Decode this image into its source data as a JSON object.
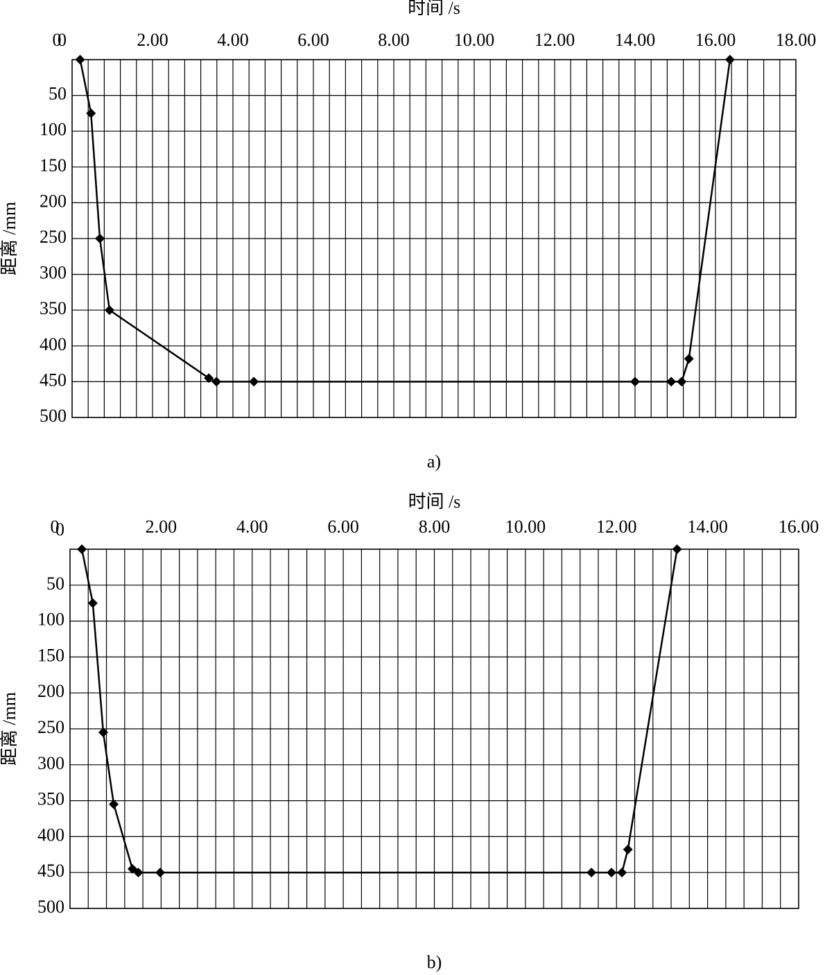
{
  "chart_data": [
    {
      "type": "line",
      "x_label": "时间 /s",
      "y_label": "距离 /mm",
      "caption": "a)",
      "xlim": [
        0,
        18
      ],
      "xticks": [
        0,
        {
          "value": 2,
          "label": "2.00"
        },
        {
          "value": 4,
          "label": "4.00"
        },
        {
          "value": 6,
          "label": "6.00"
        },
        {
          "value": 8,
          "label": "8.00"
        },
        {
          "value": 10,
          "label": "10.00"
        },
        {
          "value": 12,
          "label": "12.00"
        },
        {
          "value": 14,
          "label": "14.00"
        },
        {
          "value": 16,
          "label": "16.00"
        },
        {
          "value": 18,
          "label": "18.00"
        }
      ],
      "ylim": [
        0,
        500
      ],
      "yticks": [
        0,
        50,
        100,
        150,
        200,
        250,
        300,
        350,
        400,
        450,
        500
      ],
      "y_inverted": true,
      "x_axis_top": true,
      "grid": true,
      "series": [
        {
          "color": "#000000",
          "x": [
            0.2,
            0.47,
            0.69,
            0.93,
            3.4,
            3.59,
            4.52,
            14.0,
            14.9,
            15.16,
            15.34,
            16.36
          ],
          "values": [
            0,
            75,
            250,
            350,
            445,
            450,
            450,
            450,
            450,
            450,
            418,
            0
          ]
        }
      ]
    },
    {
      "type": "line",
      "x_label": "时间 /s",
      "y_label": "距离 /mm",
      "caption": "b)",
      "xlim": [
        0,
        16
      ],
      "xticks": [
        0,
        {
          "value": 2,
          "label": "2.00"
        },
        {
          "value": 4,
          "label": "4.00"
        },
        {
          "value": 6,
          "label": "6.00"
        },
        {
          "value": 8,
          "label": "8.00"
        },
        {
          "value": 10,
          "label": "10.00"
        },
        {
          "value": 12,
          "label": "12.00"
        },
        {
          "value": 14,
          "label": "14.00"
        },
        {
          "value": 16,
          "label": "16.00"
        }
      ],
      "ylim": [
        0,
        500
      ],
      "yticks": [
        0,
        50,
        100,
        150,
        200,
        250,
        300,
        350,
        400,
        450,
        500
      ],
      "y_inverted": true,
      "x_axis_top": true,
      "grid": true,
      "series": [
        {
          "color": "#000000",
          "x": [
            0.26,
            0.5,
            0.73,
            0.96,
            1.37,
            1.5,
            1.98,
            11.45,
            11.89,
            12.12,
            12.25,
            13.33
          ],
          "values": [
            0,
            75,
            255,
            355,
            445,
            450,
            450,
            450,
            450,
            450,
            418,
            0
          ]
        }
      ]
    }
  ]
}
